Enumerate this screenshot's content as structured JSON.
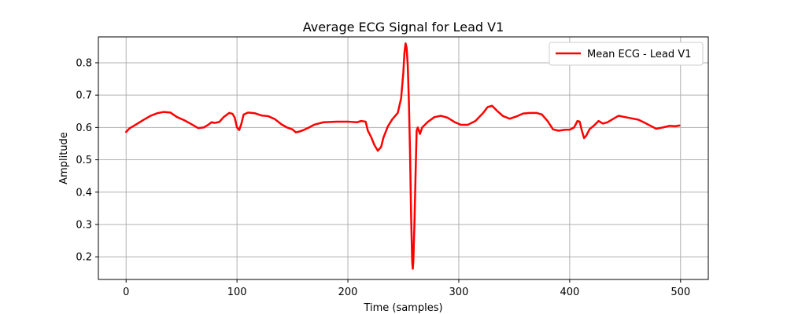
{
  "chart_data": {
    "type": "line",
    "title": "Average ECG Signal for Lead V1",
    "xlabel": "Time (samples)",
    "ylabel": "Amplitude",
    "xlim": [
      -25,
      525
    ],
    "ylim": [
      0.13,
      0.88
    ],
    "xticks": [
      0,
      100,
      200,
      300,
      400,
      500
    ],
    "yticks": [
      0.2,
      0.3,
      0.4,
      0.5,
      0.6,
      0.7,
      0.8
    ],
    "grid": true,
    "legend_position": "top-right",
    "series": [
      {
        "name": "Mean ECG - Lead V1",
        "color": "#ff0000",
        "points": [
          [
            0,
            0.586
          ],
          [
            3,
            0.597
          ],
          [
            8,
            0.607
          ],
          [
            15,
            0.622
          ],
          [
            22,
            0.636
          ],
          [
            28,
            0.644
          ],
          [
            34,
            0.648
          ],
          [
            40,
            0.646
          ],
          [
            46,
            0.632
          ],
          [
            52,
            0.623
          ],
          [
            58,
            0.612
          ],
          [
            65,
            0.598
          ],
          [
            70,
            0.6
          ],
          [
            74,
            0.608
          ],
          [
            77,
            0.616
          ],
          [
            80,
            0.614
          ],
          [
            84,
            0.617
          ],
          [
            88,
            0.632
          ],
          [
            93,
            0.645
          ],
          [
            96,
            0.642
          ],
          [
            98,
            0.63
          ],
          [
            100,
            0.6
          ],
          [
            102,
            0.592
          ],
          [
            104,
            0.612
          ],
          [
            106,
            0.64
          ],
          [
            110,
            0.646
          ],
          [
            116,
            0.644
          ],
          [
            122,
            0.637
          ],
          [
            128,
            0.635
          ],
          [
            134,
            0.626
          ],
          [
            140,
            0.61
          ],
          [
            145,
            0.6
          ],
          [
            150,
            0.594
          ],
          [
            153,
            0.585
          ],
          [
            156,
            0.587
          ],
          [
            160,
            0.592
          ],
          [
            165,
            0.6
          ],
          [
            170,
            0.609
          ],
          [
            178,
            0.616
          ],
          [
            190,
            0.618
          ],
          [
            200,
            0.618
          ],
          [
            208,
            0.616
          ],
          [
            212,
            0.62
          ],
          [
            216,
            0.618
          ],
          [
            218,
            0.59
          ],
          [
            221,
            0.57
          ],
          [
            224,
            0.545
          ],
          [
            227,
            0.528
          ],
          [
            230,
            0.54
          ],
          [
            232,
            0.568
          ],
          [
            236,
            0.603
          ],
          [
            240,
            0.625
          ],
          [
            245,
            0.645
          ],
          [
            248,
            0.69
          ],
          [
            250,
            0.77
          ],
          [
            251,
            0.83
          ],
          [
            252,
            0.86
          ],
          [
            253,
            0.845
          ],
          [
            254,
            0.79
          ],
          [
            255,
            0.68
          ],
          [
            256,
            0.53
          ],
          [
            257,
            0.33
          ],
          [
            258,
            0.185
          ],
          [
            258.5,
            0.163
          ],
          [
            259,
            0.185
          ],
          [
            260,
            0.3
          ],
          [
            261,
            0.45
          ],
          [
            262,
            0.59
          ],
          [
            263,
            0.6
          ],
          [
            265,
            0.58
          ],
          [
            267,
            0.6
          ],
          [
            272,
            0.617
          ],
          [
            278,
            0.632
          ],
          [
            284,
            0.636
          ],
          [
            290,
            0.63
          ],
          [
            296,
            0.617
          ],
          [
            302,
            0.608
          ],
          [
            308,
            0.608
          ],
          [
            315,
            0.62
          ],
          [
            322,
            0.645
          ],
          [
            326,
            0.663
          ],
          [
            330,
            0.667
          ],
          [
            335,
            0.65
          ],
          [
            340,
            0.635
          ],
          [
            346,
            0.627
          ],
          [
            352,
            0.634
          ],
          [
            358,
            0.643
          ],
          [
            364,
            0.645
          ],
          [
            370,
            0.645
          ],
          [
            375,
            0.64
          ],
          [
            380,
            0.62
          ],
          [
            385,
            0.594
          ],
          [
            390,
            0.59
          ],
          [
            396,
            0.593
          ],
          [
            400,
            0.593
          ],
          [
            404,
            0.6
          ],
          [
            407,
            0.62
          ],
          [
            409,
            0.618
          ],
          [
            411,
            0.59
          ],
          [
            413,
            0.567
          ],
          [
            415,
            0.575
          ],
          [
            418,
            0.595
          ],
          [
            422,
            0.606
          ],
          [
            426,
            0.62
          ],
          [
            430,
            0.612
          ],
          [
            434,
            0.616
          ],
          [
            440,
            0.628
          ],
          [
            444,
            0.636
          ],
          [
            450,
            0.632
          ],
          [
            456,
            0.628
          ],
          [
            462,
            0.624
          ],
          [
            468,
            0.614
          ],
          [
            473,
            0.605
          ],
          [
            478,
            0.596
          ],
          [
            484,
            0.6
          ],
          [
            490,
            0.605
          ],
          [
            495,
            0.604
          ],
          [
            499,
            0.606
          ]
        ]
      }
    ]
  }
}
